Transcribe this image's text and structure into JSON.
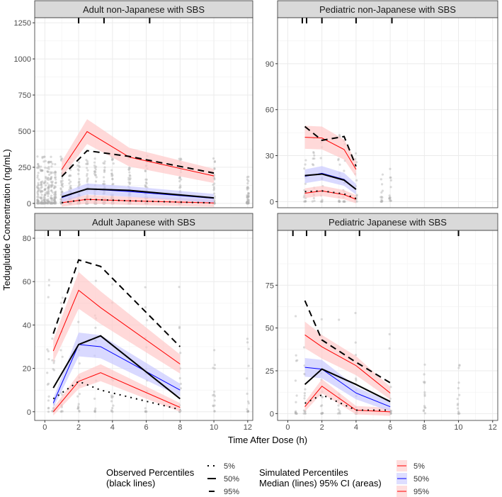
{
  "chart_data": {
    "type": "line",
    "title": "",
    "xlabel": "Time After Dose (h)",
    "ylabel": "Teduglutide Concentration (ng/mL)",
    "xlim": [
      -0.6,
      12.3
    ],
    "xticks": [
      0,
      2,
      4,
      6,
      8,
      10,
      12
    ],
    "grid": true,
    "colors": {
      "sim5": "#ff0000",
      "sim50": "#0000ff",
      "sim95": "#ff0000",
      "ci_red": "#ffc9c9",
      "ci_blue": "#c9c9ff",
      "points": "#b0b0b0",
      "observed": "#000000"
    },
    "panels": [
      {
        "title": "Adult non-Japanese with SBS",
        "ylim": [
          -30,
          1285
        ],
        "yticks": [
          0,
          250,
          500,
          750,
          1000,
          1250
        ],
        "bin_ticks": [
          2.0,
          3.5,
          6.2
        ],
        "obs_times": [
          -0.4,
          -0.2,
          0,
          0.2,
          0.4,
          0.6,
          1,
          1.5,
          2,
          2.5,
          3,
          3.5,
          4,
          5,
          6,
          8,
          10,
          12
        ],
        "x": [
          1,
          2.5,
          5,
          10
        ],
        "sim5": [
          5,
          28,
          18,
          3
        ],
        "sim50": [
          40,
          100,
          82,
          35
        ],
        "sim95": [
          235,
          497,
          320,
          190
        ],
        "obs5": [
          5,
          28,
          18,
          3
        ],
        "obs50": [
          45,
          100,
          90,
          38
        ],
        "obs95": [
          185,
          365,
          325,
          210
        ]
      },
      {
        "title": "Pediatric non-Japanese with SBS",
        "ylim": [
          -4,
          120
        ],
        "yticks": [
          0,
          30,
          60,
          90
        ],
        "bin_ticks": [
          0.85,
          1.1,
          2,
          4,
          6.1
        ],
        "obs_times": [
          1,
          1.5,
          2,
          3,
          3.3,
          4,
          5.5,
          6
        ],
        "x": [
          1,
          2,
          3.3,
          4
        ],
        "sim5": [
          5.5,
          7,
          4.5,
          1.5
        ],
        "sim50": [
          16.5,
          18.5,
          14.5,
          8
        ],
        "sim95": [
          42,
          41.5,
          34,
          21
        ],
        "obs5": [
          6.5,
          7,
          5,
          2
        ],
        "obs50": [
          17,
          18,
          14,
          8
        ],
        "obs95": [
          49,
          40,
          42.5,
          23
        ]
      },
      {
        "title": "Adult Japanese with SBS",
        "ylim": [
          -4,
          83.6
        ],
        "yticks": [
          0,
          20,
          40,
          60,
          80
        ],
        "bin_ticks": [
          0.2,
          0.9,
          2,
          5.9
        ],
        "obs_times": [
          0.2,
          0.5,
          1,
          2,
          3,
          4,
          6,
          8,
          10,
          12
        ],
        "x": [
          0.5,
          2,
          3.3,
          8
        ],
        "sim5": [
          0,
          14,
          18,
          2
        ],
        "sim50": [
          4,
          31,
          30,
          10
        ],
        "sim95": [
          28,
          56,
          48,
          22
        ],
        "obs5": [
          6,
          14,
          10,
          1
        ],
        "obs50": [
          11,
          31,
          35,
          6
        ],
        "obs95": [
          36,
          70,
          67,
          30
        ]
      },
      {
        "title": "Pediatric Japanese with SBS",
        "ylim": [
          -4,
          107
        ],
        "yticks": [
          0,
          25,
          50,
          75
        ],
        "bin_ticks": [
          0.3,
          1.1,
          2.2,
          4.2,
          10
        ],
        "obs_times": [
          0.5,
          1,
          2,
          3,
          4,
          6,
          8,
          10
        ],
        "x": [
          1,
          2,
          4,
          6
        ],
        "sim5": [
          4,
          16,
          2,
          1
        ],
        "sim50": [
          27,
          26,
          12,
          4
        ],
        "sim95": [
          46,
          39,
          28,
          12
        ],
        "obs5": [
          6,
          11,
          2,
          2
        ],
        "obs50": [
          17,
          26,
          17,
          7
        ],
        "obs95": [
          66,
          43,
          30,
          18
        ]
      }
    ],
    "legend": {
      "placement": "bottom",
      "observed_title_1": "Observed Percentiles",
      "observed_title_2": "(black lines)",
      "simulated_title_1": "Simulated Percentiles",
      "simulated_title_2": "Median (lines) 95% CI (areas)",
      "labels": [
        "5%",
        "50%",
        "95%"
      ]
    }
  }
}
